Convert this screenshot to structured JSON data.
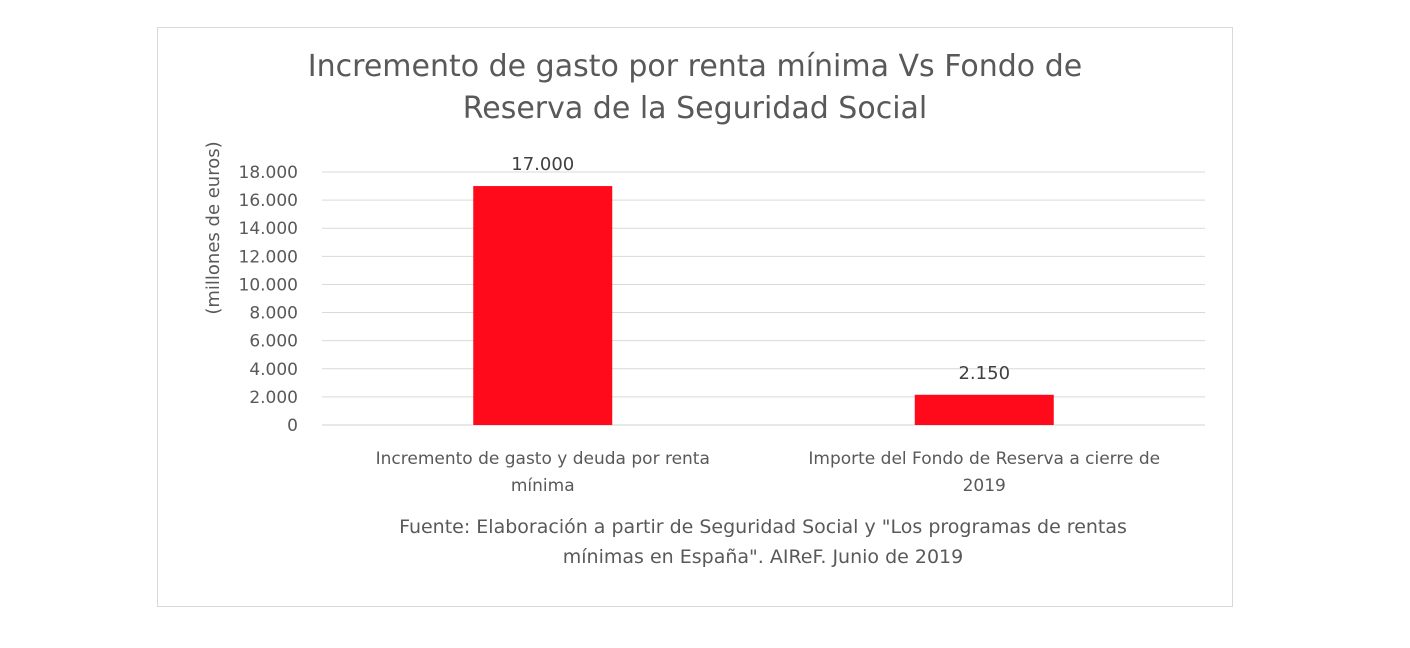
{
  "chart_data": {
    "type": "bar",
    "title": [
      "Incremento de gasto por renta mínima Vs Fondo de",
      "Reserva de la Seguridad Social"
    ],
    "xlabel": "",
    "ylabel": "(millones de euros)",
    "ylim": [
      0,
      18000
    ],
    "yticks": [
      0,
      2000,
      4000,
      6000,
      8000,
      10000,
      12000,
      14000,
      16000,
      18000
    ],
    "ytick_labels": [
      "0",
      "2.000",
      "4.000",
      "6.000",
      "8.000",
      "10.000",
      "12.000",
      "14.000",
      "16.000",
      "18.000"
    ],
    "grid": true,
    "legend": "none",
    "categories": [
      [
        "Incremento de gasto y deuda por renta",
        "mínima"
      ],
      [
        "Importe del Fondo de Reserva a cierre de",
        "2019"
      ]
    ],
    "values": [
      17000,
      2150
    ],
    "data_labels": [
      "17.000",
      "2.150"
    ],
    "bar_color": "#ff0a1b",
    "source_note": [
      "Fuente: Elaboración a partir de Seguridad Social y \"Los programas de rentas",
      "mínimas en España\". AIReF. Junio de 2019"
    ]
  }
}
